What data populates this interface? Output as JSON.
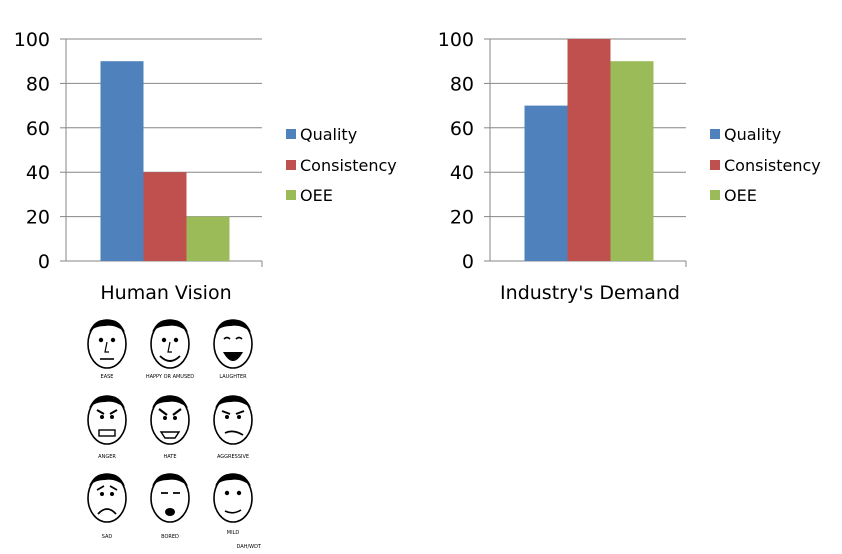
{
  "chart_data": [
    {
      "type": "bar",
      "categories": [
        "Human Vision"
      ],
      "series": [
        {
          "name": "Quality",
          "values": [
            90
          ],
          "color": "#4F81BD"
        },
        {
          "name": "Consistency",
          "values": [
            40
          ],
          "color": "#C0504D"
        },
        {
          "name": "OEE",
          "values": [
            20
          ],
          "color": "#9BBB59"
        }
      ],
      "xlabel": "Human Vision",
      "ylim": [
        0,
        100
      ],
      "yticks": [
        0,
        20,
        40,
        60,
        80,
        100
      ],
      "grid": true,
      "legend": "right"
    },
    {
      "type": "bar",
      "categories": [
        "Industry's Demand"
      ],
      "series": [
        {
          "name": "Quality",
          "values": [
            70
          ],
          "color": "#4F81BD"
        },
        {
          "name": "Consistency",
          "values": [
            100
          ],
          "color": "#C0504D"
        },
        {
          "name": "OEE",
          "values": [
            90
          ],
          "color": "#9BBB59"
        }
      ],
      "xlabel": "Industry's Demand",
      "ylim": [
        0,
        100
      ],
      "yticks": [
        0,
        20,
        40,
        60,
        80,
        100
      ],
      "grid": true,
      "legend": "right"
    }
  ],
  "faces": {
    "labels": [
      "EASE",
      "HAPPY OR AMUSED",
      "LAUGHTER",
      "ANGER",
      "HATE",
      "AGGRESSIVE",
      "SAD",
      "BORED",
      "MILD"
    ],
    "code": "DAH/WDT"
  }
}
